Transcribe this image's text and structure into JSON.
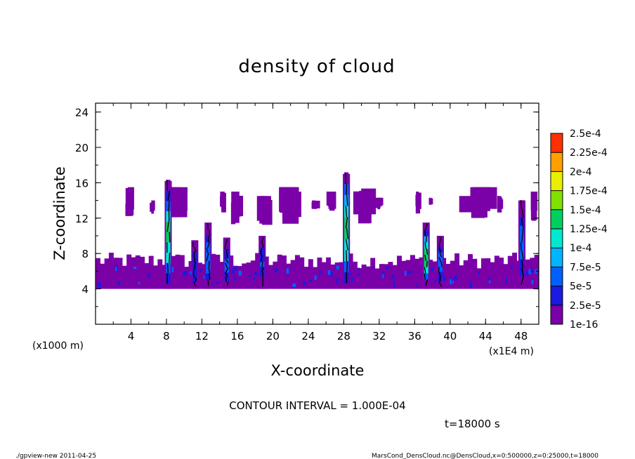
{
  "chart_data": {
    "type": "heatmap",
    "title": "density of cloud",
    "xlabel": "X-coordinate",
    "ylabel": "Z-coordinate",
    "x_unit_left": "(x1000 m)",
    "x_unit_right": "(x1E4 m)",
    "xlim": [
      0,
      50
    ],
    "ylim": [
      0,
      25
    ],
    "x_ticks": [
      "4",
      "8",
      "12",
      "16",
      "20",
      "24",
      "28",
      "32",
      "36",
      "40",
      "44",
      "48"
    ],
    "y_ticks": [
      "4",
      "8",
      "12",
      "16",
      "20",
      "24"
    ],
    "colorbar": {
      "levels": [
        "1e-16",
        "2.5e-5",
        "5e-5",
        "7.5e-5",
        "1e-4",
        "1.25e-4",
        "1.5e-4",
        "1.75e-4",
        "2e-4",
        "2.25e-4",
        "2.5e-4"
      ],
      "colors": [
        "#7a00a8",
        "#1a1ae0",
        "#0060ff",
        "#00b4ff",
        "#00e8d0",
        "#00d060",
        "#80e000",
        "#e8f000",
        "#ffa000",
        "#ff3000",
        "#ff8080"
      ]
    },
    "cloud_base_z": 4,
    "low_layer_top_z": 7.5,
    "towers": [
      {
        "x": 8.2,
        "z_top": 16.2,
        "peak": 0.00016
      },
      {
        "x": 11.2,
        "z_top": 9.5,
        "peak": 6e-05
      },
      {
        "x": 12.7,
        "z_top": 11.5,
        "peak": 8e-05
      },
      {
        "x": 14.8,
        "z_top": 9.8,
        "peak": 6e-05
      },
      {
        "x": 18.8,
        "z_top": 10.0,
        "peak": 6e-05
      },
      {
        "x": 28.3,
        "z_top": 17.0,
        "peak": 0.00017
      },
      {
        "x": 37.3,
        "z_top": 11.5,
        "peak": 0.00015
      },
      {
        "x": 38.9,
        "z_top": 10.0,
        "peak": 7e-05
      },
      {
        "x": 48.1,
        "z_top": 14.0,
        "peak": 8e-05
      }
    ],
    "upper_patches": [
      {
        "x0": 3.3,
        "x1": 4.2,
        "z0": 12.0,
        "z1": 15.5
      },
      {
        "x0": 6.0,
        "x1": 6.6,
        "z0": 12.5,
        "z1": 14.0
      },
      {
        "x0": 7.5,
        "x1": 10.0,
        "z0": 12.0,
        "z1": 15.5
      },
      {
        "x0": 14.0,
        "x1": 14.6,
        "z0": 12.5,
        "z1": 15.0
      },
      {
        "x0": 15.2,
        "x1": 16.2,
        "z0": 11.0,
        "z1": 15.0
      },
      {
        "x0": 18.2,
        "x1": 19.5,
        "z0": 11.0,
        "z1": 14.5
      },
      {
        "x0": 20.3,
        "x1": 22.5,
        "z0": 11.0,
        "z1": 15.5
      },
      {
        "x0": 24.2,
        "x1": 25.0,
        "z0": 13.0,
        "z1": 14.0
      },
      {
        "x0": 26.0,
        "x1": 27.0,
        "z0": 12.5,
        "z1": 15.0
      },
      {
        "x0": 29.0,
        "x1": 31.0,
        "z0": 11.0,
        "z1": 15.5
      },
      {
        "x0": 31.5,
        "x1": 32.2,
        "z0": 13.0,
        "z1": 14.3
      },
      {
        "x0": 36.0,
        "x1": 36.6,
        "z0": 12.5,
        "z1": 15.0
      },
      {
        "x0": 37.6,
        "x1": 38.0,
        "z0": 13.5,
        "z1": 14.3
      },
      {
        "x0": 41.0,
        "x1": 44.8,
        "z0": 12.0,
        "z1": 15.5
      },
      {
        "x0": 45.3,
        "x1": 45.9,
        "z0": 12.5,
        "z1": 14.5
      },
      {
        "x0": 49.0,
        "x1": 49.8,
        "z0": 11.5,
        "z1": 15.0
      }
    ]
  },
  "annotations": {
    "contour_interval": "CONTOUR INTERVAL = 1.000E-04",
    "time": "t=18000 s",
    "footer_left": "./gpview-new  2011-04-25",
    "footer_right": "MarsCond_DensCloud.nc@DensCloud,x=0:500000,z=0:25000,t=18000"
  }
}
